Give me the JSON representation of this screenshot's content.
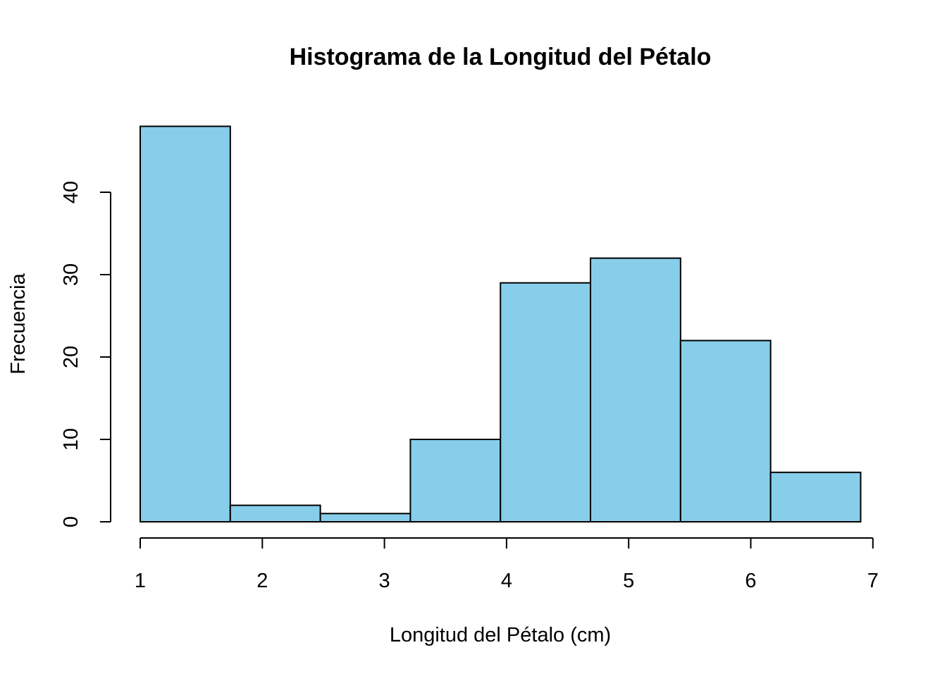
{
  "chart_data": {
    "type": "bar",
    "subtype": "histogram",
    "title": "Histograma de la Longitud del Pétalo",
    "xlabel": "Longitud del Pétalo (cm)",
    "ylabel": "Frecuencia",
    "bar_color": "#87ceeb",
    "border_color": "#000000",
    "grid": false,
    "legend": "none",
    "bin_edges": [
      1.0,
      1.7375,
      2.475,
      3.2125,
      3.95,
      4.6875,
      5.425,
      6.1625,
      6.9
    ],
    "values": [
      48,
      2,
      1,
      10,
      29,
      32,
      22,
      6
    ],
    "xlim": [
      1,
      7
    ],
    "ylim": [
      0,
      48
    ],
    "x_ticks": [
      1,
      2,
      3,
      4,
      5,
      6,
      7
    ],
    "x_tick_labels": [
      "1",
      "2",
      "3",
      "4",
      "5",
      "6",
      "7"
    ],
    "y_ticks": [
      0,
      10,
      20,
      30,
      40
    ],
    "y_tick_labels": [
      "0",
      "10",
      "20",
      "30",
      "40"
    ]
  }
}
